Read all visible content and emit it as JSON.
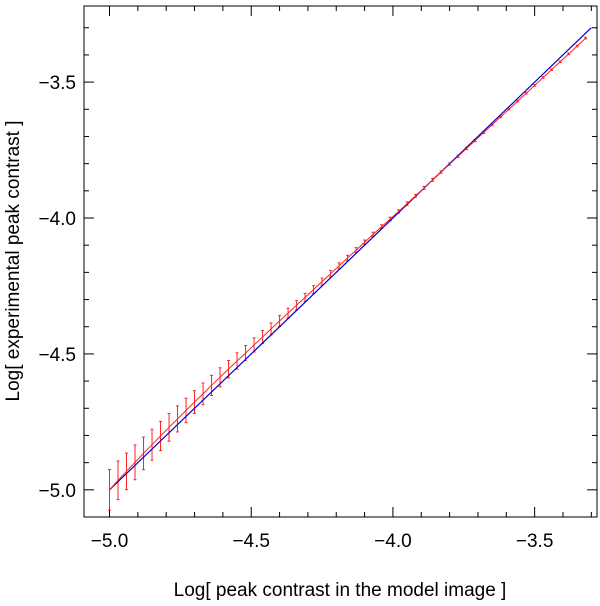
{
  "chart_data": {
    "type": "line",
    "title": "",
    "xlabel": "Log[ peak contrast in the model image ]",
    "ylabel": "Log[ experimental peak contrast ]",
    "xlim": [
      -5.09,
      -3.28
    ],
    "ylim": [
      -5.1,
      -3.22
    ],
    "x_ticks": [
      -5.0,
      -4.5,
      -4.0,
      -3.5
    ],
    "x_tick_labels": [
      "−5.0",
      "−4.5",
      "−4.0",
      "−3.5"
    ],
    "y_ticks": [
      -5.0,
      -4.5,
      -4.0,
      -3.5
    ],
    "y_tick_labels": [
      "−5.0",
      "−4.5",
      "−4.0",
      "−3.5"
    ],
    "x_minor_step": 0.1,
    "y_minor_step": 0.1,
    "grid": false,
    "series": [
      {
        "kind": "reference-line",
        "color": "#0000cc",
        "x": [
          -5.0,
          -3.3
        ],
        "y": [
          -5.0,
          -3.3
        ]
      },
      {
        "kind": "measured-with-errorbars",
        "line_color": "#ff2222",
        "errorbar_color": "#ff2222",
        "x": [
          -5.0,
          -4.97,
          -4.94,
          -4.91,
          -4.88,
          -4.85,
          -4.82,
          -4.79,
          -4.76,
          -4.73,
          -4.7,
          -4.67,
          -4.64,
          -4.61,
          -4.58,
          -4.55,
          -4.52,
          -4.49,
          -4.46,
          -4.43,
          -4.4,
          -4.37,
          -4.34,
          -4.31,
          -4.28,
          -4.25,
          -4.22,
          -4.19,
          -4.16,
          -4.13,
          -4.1,
          -4.07,
          -4.04,
          -4.01,
          -3.98,
          -3.95,
          -3.92,
          -3.89,
          -3.86,
          -3.83,
          -3.8,
          -3.77,
          -3.74,
          -3.71,
          -3.68,
          -3.65,
          -3.62,
          -3.59,
          -3.56,
          -3.53,
          -3.5,
          -3.47,
          -3.44,
          -3.41,
          -3.38,
          -3.35,
          -3.32
        ],
        "y": [
          -5.0,
          -4.965,
          -4.932,
          -4.899,
          -4.866,
          -4.834,
          -4.802,
          -4.77,
          -4.739,
          -4.708,
          -4.677,
          -4.647,
          -4.616,
          -4.586,
          -4.556,
          -4.526,
          -4.497,
          -4.467,
          -4.438,
          -4.408,
          -4.379,
          -4.35,
          -4.321,
          -4.292,
          -4.263,
          -4.234,
          -4.205,
          -4.176,
          -4.147,
          -4.118,
          -4.089,
          -4.06,
          -4.032,
          -4.004,
          -3.976,
          -3.947,
          -3.918,
          -3.889,
          -3.86,
          -3.831,
          -3.802,
          -3.773,
          -3.744,
          -3.715,
          -3.686,
          -3.657,
          -3.628,
          -3.599,
          -3.57,
          -3.541,
          -3.512,
          -3.483,
          -3.454,
          -3.425,
          -3.396,
          -3.367,
          -3.338
        ],
        "err": [
          0.075,
          0.071,
          0.067,
          0.064,
          0.06,
          0.057,
          0.054,
          0.051,
          0.048,
          0.045,
          0.042,
          0.04,
          0.037,
          0.035,
          0.032,
          0.03,
          0.028,
          0.026,
          0.024,
          0.022,
          0.02,
          0.018,
          0.017,
          0.015,
          0.014,
          0.013,
          0.012,
          0.011,
          0.01,
          0.009,
          0.008,
          0.008,
          0.007,
          0.007,
          0.006,
          0.006,
          0.005,
          0.005,
          0.005,
          0.004,
          0.004,
          0.004,
          0.004,
          0.004,
          0.003,
          0.003,
          0.003,
          0.003,
          0.003,
          0.003,
          0.003,
          0.003,
          0.003,
          0.003,
          0.003,
          0.003,
          0.003
        ]
      }
    ]
  }
}
